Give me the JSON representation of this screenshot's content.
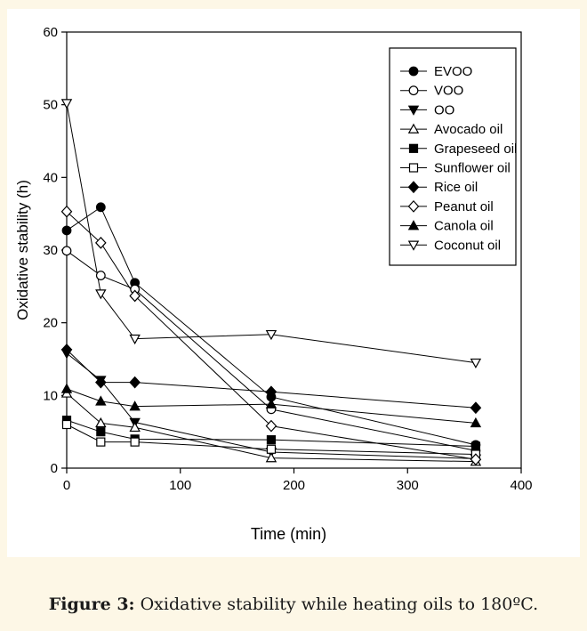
{
  "chart_data": {
    "type": "line",
    "title": "",
    "xlabel": "Time (min)",
    "ylabel": "Oxidative stability (h)",
    "xlim": [
      0,
      400
    ],
    "ylim": [
      0,
      60
    ],
    "x_ticks": [
      0,
      100,
      200,
      300,
      400
    ],
    "y_ticks": [
      0,
      10,
      20,
      30,
      40,
      50,
      60
    ],
    "grid": false,
    "legend_position": "top-right",
    "x": [
      0,
      30,
      60,
      180,
      360
    ],
    "series": [
      {
        "name": "EVOO",
        "marker": "circle-filled",
        "values": [
          32.7,
          35.9,
          25.5,
          9.8,
          3.2
        ]
      },
      {
        "name": "VOO",
        "marker": "circle-open",
        "values": [
          29.9,
          26.5,
          24.6,
          8.1,
          2.4
        ]
      },
      {
        "name": "OO",
        "marker": "triangle-down-filled",
        "values": [
          15.8,
          12.1,
          6.3,
          2.2,
          1.3
        ]
      },
      {
        "name": "Avocado oil",
        "marker": "triangle-up-open",
        "values": [
          10.3,
          6.2,
          5.6,
          1.4,
          0.9
        ]
      },
      {
        "name": "Grapeseed oil",
        "marker": "square-filled",
        "values": [
          6.6,
          5.0,
          4.0,
          3.9,
          3.0
        ]
      },
      {
        "name": "Sunflower oil",
        "marker": "square-open",
        "values": [
          6.0,
          3.6,
          3.6,
          2.6,
          1.9
        ]
      },
      {
        "name": "Rice oil",
        "marker": "diamond-filled",
        "values": [
          16.3,
          11.8,
          11.8,
          10.5,
          8.3
        ]
      },
      {
        "name": "Peanut oil",
        "marker": "diamond-open",
        "values": [
          35.3,
          31.0,
          23.7,
          5.8,
          1.2
        ]
      },
      {
        "name": "Canola oil",
        "marker": "triangle-up-filled",
        "values": [
          10.9,
          9.2,
          8.5,
          8.8,
          6.2
        ]
      },
      {
        "name": "Coconut oil",
        "marker": "triangle-down-open",
        "values": [
          50.2,
          24.0,
          17.8,
          18.4,
          14.5
        ]
      }
    ]
  },
  "caption": {
    "label": "Figure 3:",
    "text": " Oxidative stability while heating oils to 180ºC."
  }
}
